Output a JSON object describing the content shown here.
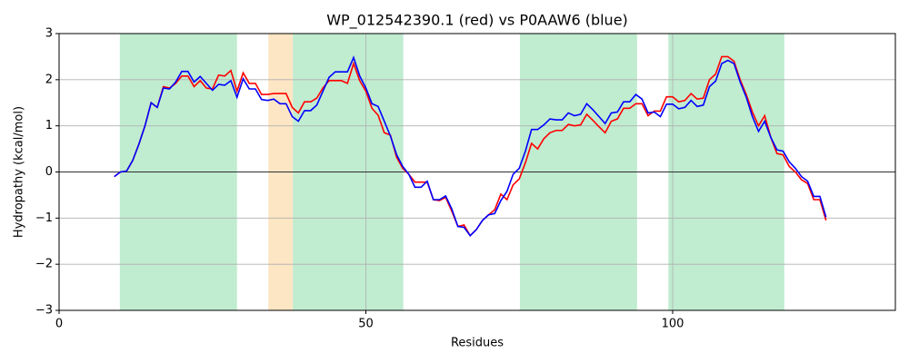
{
  "chart_data": {
    "type": "line",
    "title": "WP_012542390.1 (red) vs P0AAW6 (blue)",
    "xlabel": "Residues",
    "ylabel": "Hydropathy (kcal/mol)",
    "xlim": [
      0,
      136.3
    ],
    "ylim": [
      -3,
      3
    ],
    "xticks": [
      0,
      50,
      100
    ],
    "yticks": [
      {
        "value": -3,
        "label": "−3"
      },
      {
        "value": -2,
        "label": "−2"
      },
      {
        "value": -1,
        "label": "−1"
      },
      0,
      1,
      2,
      3
    ],
    "grid": true,
    "reference_line": {
      "value": 0,
      "color": "#000000"
    },
    "shaded_regions": [
      {
        "start": 9.9,
        "end": 29,
        "color": "#c0ecd0"
      },
      {
        "start": 34.1,
        "end": 38.1,
        "color": "#fde6c4"
      },
      {
        "start": 38.1,
        "end": 56.1,
        "color": "#c0ecd0"
      },
      {
        "start": 75.1,
        "end": 94.2,
        "color": "#c0ecd0"
      },
      {
        "start": 99.3,
        "end": 118.2,
        "color": "#c0ecd0"
      }
    ],
    "x": [
      9,
      10,
      11,
      12,
      13,
      14,
      15,
      16,
      17,
      18,
      19,
      20,
      21,
      22,
      23,
      24,
      25,
      26,
      27,
      28,
      29,
      30,
      31,
      32,
      33,
      34,
      35,
      36,
      37,
      38,
      39,
      40,
      41,
      42,
      43,
      44,
      45,
      46,
      47,
      48,
      49,
      50,
      51,
      52,
      53,
      54,
      55,
      56,
      57,
      58,
      59,
      60,
      61,
      62,
      63,
      64,
      65,
      66,
      67,
      68,
      69,
      70,
      71,
      72,
      73,
      74,
      75,
      76,
      77,
      78,
      79,
      80,
      81,
      82,
      83,
      84,
      85,
      86,
      87,
      88,
      89,
      90,
      91,
      92,
      93,
      94,
      95,
      96,
      97,
      98,
      99,
      100,
      101,
      102,
      103,
      104,
      105,
      106,
      107,
      108,
      109,
      110,
      111,
      112,
      113,
      114,
      115,
      116,
      117,
      118,
      119,
      120,
      121,
      122,
      123,
      124,
      125
    ],
    "series": [
      {
        "name": "WP_012542390.1",
        "color": "#ff0000",
        "values": [
          -0.1,
          0,
          0.02,
          0.25,
          0.6,
          1.0,
          1.5,
          1.4,
          1.85,
          1.82,
          1.92,
          2.08,
          2.08,
          1.85,
          1.98,
          1.82,
          1.8,
          2.1,
          2.08,
          2.2,
          1.75,
          2.15,
          1.92,
          1.92,
          1.68,
          1.68,
          1.7,
          1.7,
          1.7,
          1.4,
          1.28,
          1.52,
          1.52,
          1.6,
          1.82,
          1.98,
          1.98,
          1.98,
          1.92,
          2.35,
          1.98,
          1.75,
          1.38,
          1.23,
          0.85,
          0.8,
          0.32,
          0.08,
          -0.05,
          -0.22,
          -0.22,
          -0.22,
          -0.6,
          -0.62,
          -0.55,
          -0.85,
          -1.18,
          -1.15,
          -1.38,
          -1.25,
          -1.05,
          -0.93,
          -0.82,
          -0.48,
          -0.6,
          -0.28,
          -0.15,
          0.2,
          0.62,
          0.5,
          0.72,
          0.85,
          0.9,
          0.9,
          1.03,
          1.0,
          1.02,
          1.25,
          1.12,
          0.98,
          0.85,
          1.1,
          1.15,
          1.38,
          1.38,
          1.48,
          1.48,
          1.22,
          1.32,
          1.32,
          1.63,
          1.63,
          1.52,
          1.55,
          1.7,
          1.58,
          1.6,
          2.0,
          2.12,
          2.5,
          2.5,
          2.4,
          2.0,
          1.68,
          1.3,
          1.0,
          1.22,
          0.75,
          0.4,
          0.37,
          0.12,
          0.0,
          -0.17,
          -0.25,
          -0.6,
          -0.6,
          -1.05
        ]
      },
      {
        "name": "P0AAW6",
        "color": "#0000ff",
        "values": [
          -0.1,
          0,
          0.02,
          0.25,
          0.6,
          1.0,
          1.5,
          1.4,
          1.82,
          1.8,
          1.95,
          2.18,
          2.18,
          1.95,
          2.07,
          1.92,
          1.77,
          1.9,
          1.88,
          1.98,
          1.62,
          2.02,
          1.8,
          1.8,
          1.57,
          1.55,
          1.58,
          1.48,
          1.48,
          1.2,
          1.1,
          1.33,
          1.33,
          1.45,
          1.75,
          2.05,
          2.17,
          2.17,
          2.17,
          2.48,
          2.08,
          1.82,
          1.48,
          1.42,
          1.1,
          0.78,
          0.38,
          0.12,
          -0.05,
          -0.33,
          -0.33,
          -0.2,
          -0.6,
          -0.6,
          -0.52,
          -0.8,
          -1.18,
          -1.2,
          -1.38,
          -1.25,
          -1.05,
          -0.93,
          -0.9,
          -0.62,
          -0.42,
          -0.05,
          0.08,
          0.45,
          0.92,
          0.92,
          1.02,
          1.15,
          1.13,
          1.13,
          1.28,
          1.22,
          1.25,
          1.48,
          1.35,
          1.2,
          1.05,
          1.28,
          1.3,
          1.52,
          1.52,
          1.68,
          1.58,
          1.28,
          1.3,
          1.2,
          1.47,
          1.47,
          1.37,
          1.4,
          1.55,
          1.42,
          1.45,
          1.85,
          1.97,
          2.35,
          2.42,
          2.35,
          1.95,
          1.62,
          1.2,
          0.88,
          1.1,
          0.75,
          0.48,
          0.45,
          0.22,
          0.08,
          -0.1,
          -0.2,
          -0.53,
          -0.53,
          -0.98
        ]
      }
    ]
  }
}
